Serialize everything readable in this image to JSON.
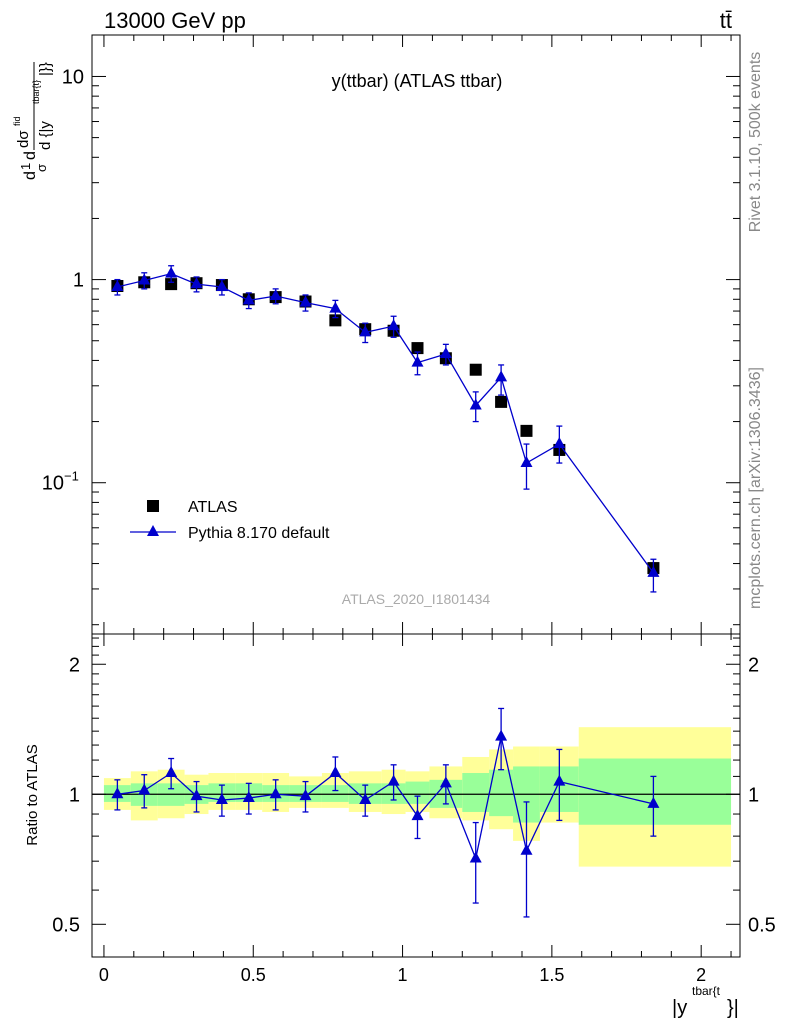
{
  "header": {
    "energy_label": "13000 GeV pp",
    "process_label": "tt̄"
  },
  "side_labels": {
    "rivet": "Rivet 3.1.10,  500k events",
    "mcplots": "mcplots.cern.ch [arXiv:1306.3436]"
  },
  "chart_data": [
    {
      "type": "scatter",
      "title": "y(ttbar) (ATLAS ttbar)",
      "analysis_tag": "ATLAS_2020_I1801434",
      "ylabel": "dσ/d{|y^{tbar{t}}|} 1/σ dσ^{fid}/d{|y^{tbar{t}}|}",
      "ylabel_parts": {
        "frac1": "1",
        "frac2": "σ",
        "d": "d",
        "sigma": "dσ",
        "sup": "fid",
        "den": "d {|y",
        "densup": "tbar{t}",
        "close": "|}}"
      },
      "yscale": "log",
      "ylim": [
        0.018,
        16
      ],
      "xlim": [
        -0.04,
        2.13
      ],
      "yticks": [
        {
          "value": 10,
          "label": "10"
        },
        {
          "value": 1,
          "label": "1"
        },
        {
          "value": 0.1,
          "label": "10",
          "sup": "−1"
        }
      ],
      "legend_position": "lower-left",
      "series": [
        {
          "name": "ATLAS",
          "marker": "square",
          "color": "#000000",
          "x": [
            0.045,
            0.135,
            0.225,
            0.31,
            0.395,
            0.485,
            0.575,
            0.675,
            0.775,
            0.875,
            0.97,
            1.05,
            1.145,
            1.245,
            1.33,
            1.415,
            1.525,
            1.84
          ],
          "y": [
            0.93,
            0.97,
            0.95,
            0.96,
            0.94,
            0.8,
            0.82,
            0.78,
            0.63,
            0.57,
            0.56,
            0.46,
            0.41,
            0.36,
            0.25,
            0.18,
            0.145,
            0.038
          ]
        },
        {
          "name": "Pythia 8.170 default",
          "marker": "triangle",
          "color": "#0000cc",
          "x": [
            0.045,
            0.135,
            0.225,
            0.31,
            0.395,
            0.485,
            0.575,
            0.675,
            0.775,
            0.875,
            0.97,
            1.05,
            1.145,
            1.245,
            1.33,
            1.415,
            1.525,
            1.84
          ],
          "y": [
            0.92,
            0.99,
            1.07,
            0.95,
            0.92,
            0.79,
            0.83,
            0.77,
            0.72,
            0.55,
            0.59,
            0.39,
            0.43,
            0.24,
            0.33,
            0.125,
            0.155,
            0.036
          ],
          "yerr_low": [
            0.08,
            0.09,
            0.1,
            0.08,
            0.08,
            0.07,
            0.07,
            0.07,
            0.07,
            0.06,
            0.07,
            0.05,
            0.05,
            0.04,
            0.06,
            0.032,
            0.03,
            0.007
          ],
          "yerr_high": [
            0.08,
            0.09,
            0.1,
            0.08,
            0.08,
            0.07,
            0.07,
            0.07,
            0.07,
            0.06,
            0.07,
            0.05,
            0.05,
            0.04,
            0.05,
            0.03,
            0.035,
            0.006
          ]
        }
      ]
    },
    {
      "type": "scatter",
      "ylabel": "Ratio to ATLAS",
      "xlabel": "|y^{tbar{t}}|",
      "xlabel_parts": {
        "base": "|y",
        "sup": "tbar{t",
        "close": "}|"
      },
      "yscale": "log",
      "ylim": [
        0.42,
        2.35
      ],
      "xlim": [
        -0.04,
        2.13
      ],
      "yticks": [
        {
          "value": 2,
          "label": "2"
        },
        {
          "value": 1,
          "label": "1"
        },
        {
          "value": 0.5,
          "label": "0.5"
        }
      ],
      "xticks": [
        {
          "value": 0,
          "label": "0"
        },
        {
          "value": 0.5,
          "label": "0.5"
        },
        {
          "value": 1,
          "label": "1"
        },
        {
          "value": 1.5,
          "label": "1.5"
        },
        {
          "value": 2,
          "label": "2"
        }
      ],
      "reference_line": 1,
      "bands": {
        "bin_edges": [
          0,
          0.09,
          0.18,
          0.27,
          0.35,
          0.44,
          0.53,
          0.62,
          0.73,
          0.82,
          0.93,
          1.01,
          1.09,
          1.2,
          1.29,
          1.37,
          1.46,
          1.59,
          2.1
        ],
        "yellow_low": [
          0.92,
          0.87,
          0.88,
          0.9,
          0.92,
          0.92,
          0.91,
          0.93,
          0.93,
          0.91,
          0.9,
          0.91,
          0.88,
          0.87,
          0.83,
          0.78,
          0.86,
          0.68
        ],
        "yellow_high": [
          1.09,
          1.13,
          1.14,
          1.11,
          1.12,
          1.12,
          1.12,
          1.1,
          1.12,
          1.13,
          1.14,
          1.13,
          1.16,
          1.22,
          1.27,
          1.29,
          1.29,
          1.43
        ],
        "green_low": [
          0.96,
          0.94,
          0.94,
          0.95,
          0.96,
          0.96,
          0.96,
          0.96,
          0.96,
          0.95,
          0.95,
          0.95,
          0.93,
          0.91,
          0.89,
          0.86,
          0.91,
          0.85
        ],
        "green_high": [
          1.05,
          1.06,
          1.06,
          1.05,
          1.06,
          1.06,
          1.05,
          1.05,
          1.05,
          1.06,
          1.06,
          1.07,
          1.08,
          1.12,
          1.14,
          1.16,
          1.16,
          1.21
        ],
        "yellow_color": "#ffff99",
        "green_color": "#99ff99"
      },
      "series": [
        {
          "name": "Pythia 8.170 default / ATLAS",
          "marker": "triangle",
          "color": "#0000cc",
          "x": [
            0.045,
            0.135,
            0.225,
            0.31,
            0.395,
            0.485,
            0.575,
            0.675,
            0.775,
            0.875,
            0.97,
            1.05,
            1.145,
            1.245,
            1.33,
            1.415,
            1.525,
            1.84
          ],
          "y": [
            1.0,
            1.02,
            1.12,
            0.99,
            0.97,
            0.98,
            1.0,
            0.99,
            1.12,
            0.97,
            1.07,
            0.89,
            1.06,
            0.71,
            1.36,
            0.74,
            1.07,
            0.95
          ],
          "yerr_low": [
            0.08,
            0.09,
            0.09,
            0.08,
            0.08,
            0.08,
            0.08,
            0.08,
            0.1,
            0.08,
            0.1,
            0.1,
            0.11,
            0.15,
            0.22,
            0.22,
            0.2,
            0.15
          ],
          "yerr_high": [
            0.08,
            0.09,
            0.09,
            0.08,
            0.08,
            0.08,
            0.08,
            0.08,
            0.1,
            0.08,
            0.1,
            0.1,
            0.11,
            0.15,
            0.22,
            0.22,
            0.2,
            0.15
          ]
        }
      ]
    }
  ]
}
